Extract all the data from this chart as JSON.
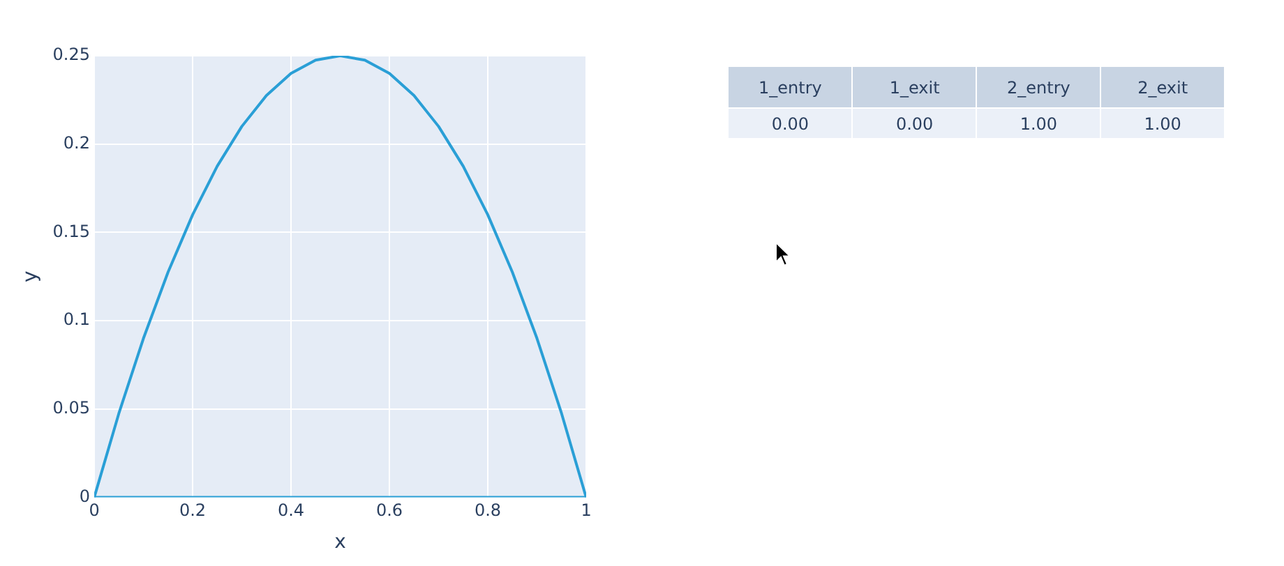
{
  "chart_data": [
    {
      "type": "line",
      "xlabel": "x",
      "ylabel": "y",
      "x": [
        0,
        0.05,
        0.1,
        0.15,
        0.2,
        0.25,
        0.3,
        0.35,
        0.4,
        0.45,
        0.5,
        0.55,
        0.6,
        0.65,
        0.7,
        0.75,
        0.8,
        0.85,
        0.9,
        0.95,
        1
      ],
      "series": [
        {
          "color": "#2a9fd6",
          "values": [
            0,
            0.0475,
            0.09,
            0.1275,
            0.16,
            0.1875,
            0.21,
            0.2275,
            0.24,
            0.2475,
            0.25,
            0.2475,
            0.24,
            0.2275,
            0.21,
            0.1875,
            0.16,
            0.1275,
            0.09,
            0.0475,
            0
          ]
        },
        {
          "color": "#2a9fd6",
          "x": [
            0,
            1
          ],
          "values": [
            0,
            0
          ]
        }
      ],
      "xlim": [
        0,
        1
      ],
      "xticks": [
        0,
        0.2,
        0.4,
        0.6,
        0.8,
        1
      ],
      "ylim": [
        0,
        0.25
      ],
      "yticks": [
        0,
        0.05,
        0.1,
        0.15,
        0.2,
        0.25
      ],
      "grid": true,
      "legend": false,
      "marker": "none",
      "line_style": "solid"
    },
    {
      "type": "other",
      "categories": [
        "1_entry",
        "1_exit",
        "2_entry",
        "2_exit"
      ],
      "value_labels": [
        "0.00",
        "0.00",
        "1.00",
        "1.00"
      ]
    }
  ]
}
